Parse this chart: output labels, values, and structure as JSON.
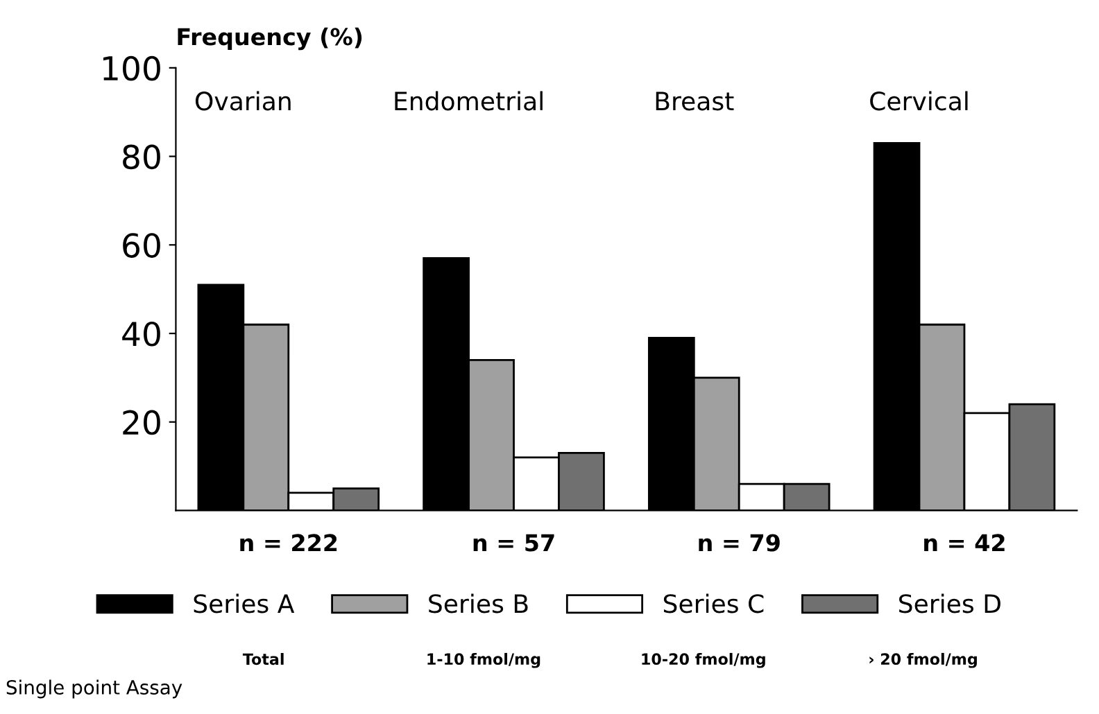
{
  "chart_data": {
    "type": "bar",
    "categories": [
      "Ovarian",
      "Endometrial",
      "Breast",
      "Cervical"
    ],
    "ylabel": "Frequency (%)",
    "series": [
      {
        "name": "Series A",
        "color": "#000000",
        "values": [
          51,
          57,
          39,
          83
        ]
      },
      {
        "name": "Series B",
        "color": "#a0a0a0",
        "values": [
          42,
          34,
          30,
          42
        ]
      },
      {
        "name": "Series C",
        "color": "#ffffff",
        "values": [
          4,
          12,
          6,
          22
        ]
      },
      {
        "name": "Series D",
        "color": "#707070",
        "values": [
          5,
          13,
          6,
          24
        ]
      }
    ],
    "ylim": [
      0,
      100
    ],
    "yticks": [
      20,
      40,
      60,
      80,
      100
    ],
    "grid": false,
    "legend": "bottom",
    "annotations": [
      "n = 222",
      "n = 57",
      "n = 79",
      "n = 42",
      "Total",
      "1-10 fmol/mg",
      "10-20 fmol/mg",
      "› 20 fmol/mg",
      "Single point Assay"
    ]
  }
}
